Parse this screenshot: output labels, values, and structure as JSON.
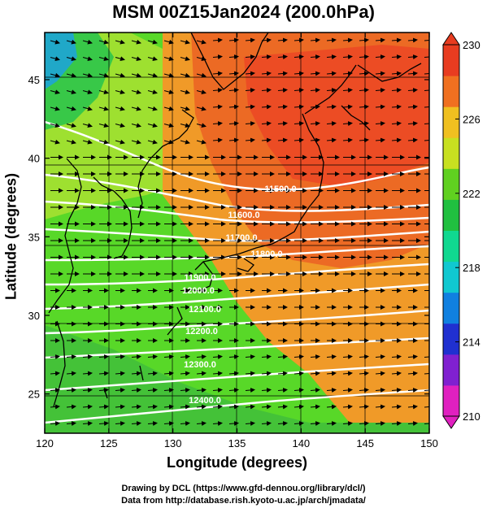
{
  "title": "MSM 00Z15Jan2024 (200.0hPa)",
  "map": {
    "xlabel": "Longitude (degrees)",
    "ylabel": "Latitude  (degrees)",
    "lon_range": [
      120,
      150
    ],
    "lat_range": [
      22.5,
      48
    ],
    "xticks": [
      120,
      125,
      130,
      135,
      140,
      145,
      150
    ],
    "yticks": [
      25,
      30,
      35,
      40,
      45
    ],
    "field": "temperature shading with wind vectors",
    "contour_labels": [
      "11500.0",
      "11600.0",
      "11700.0",
      "11800.0",
      "11900.0",
      "12000.0",
      "12100.0",
      "12200.0",
      "12300.0",
      "12400.0"
    ],
    "colorbar": {
      "ticks": [
        230,
        226,
        222,
        218,
        214,
        210
      ],
      "min": 210,
      "max": 230,
      "colors": [
        "#e020c0",
        "#8020d0",
        "#2030d0",
        "#1080e0",
        "#10c8d0",
        "#10d890",
        "#20c040",
        "#60d020",
        "#c8e020",
        "#f0c020",
        "#f07020",
        "#e83c20"
      ]
    }
  },
  "credit_line_1": "Drawing by DCL (https://www.gfd-dennou.org/library/dcl/)",
  "credit_line_2": "Data from http://database.rish.kyoto-u.ac.jp/arch/jmadata/"
}
